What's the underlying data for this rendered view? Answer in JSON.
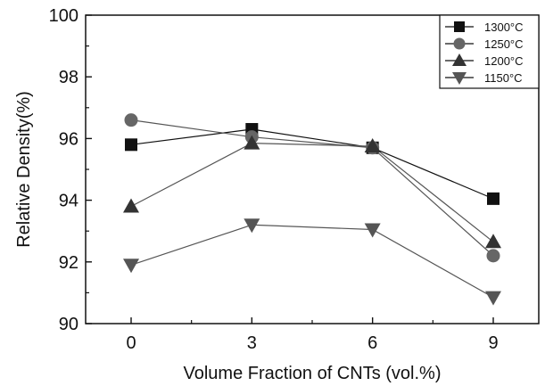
{
  "chart_data": {
    "type": "line",
    "title": "",
    "xlabel": "Volume Fraction of CNTs (vol.%)",
    "ylabel": "Relative Density(%)",
    "x": [
      0,
      3,
      6,
      9
    ],
    "x_tick_labels": [
      "0",
      "3",
      "6",
      "9"
    ],
    "ylim": [
      90,
      100
    ],
    "y_ticks": [
      90,
      92,
      94,
      96,
      98,
      100
    ],
    "y_tick_labels": [
      "90",
      "92",
      "94",
      "96",
      "98",
      "100"
    ],
    "grid": false,
    "legend_position": "top-right",
    "series": [
      {
        "name": "1300°C",
        "marker": "square",
        "color": "#111111",
        "values": [
          95.8,
          96.3,
          95.7,
          94.05
        ]
      },
      {
        "name": "1250°C",
        "marker": "circle",
        "color": "#666666",
        "values": [
          96.6,
          96.05,
          95.7,
          92.2
        ]
      },
      {
        "name": "1200°C",
        "marker": "triangle-up",
        "color": "#333333",
        "values": [
          93.8,
          95.85,
          95.75,
          92.65
        ]
      },
      {
        "name": "1150°C",
        "marker": "triangle-down",
        "color": "#555555",
        "values": [
          91.9,
          93.2,
          93.05,
          90.85
        ]
      }
    ]
  }
}
